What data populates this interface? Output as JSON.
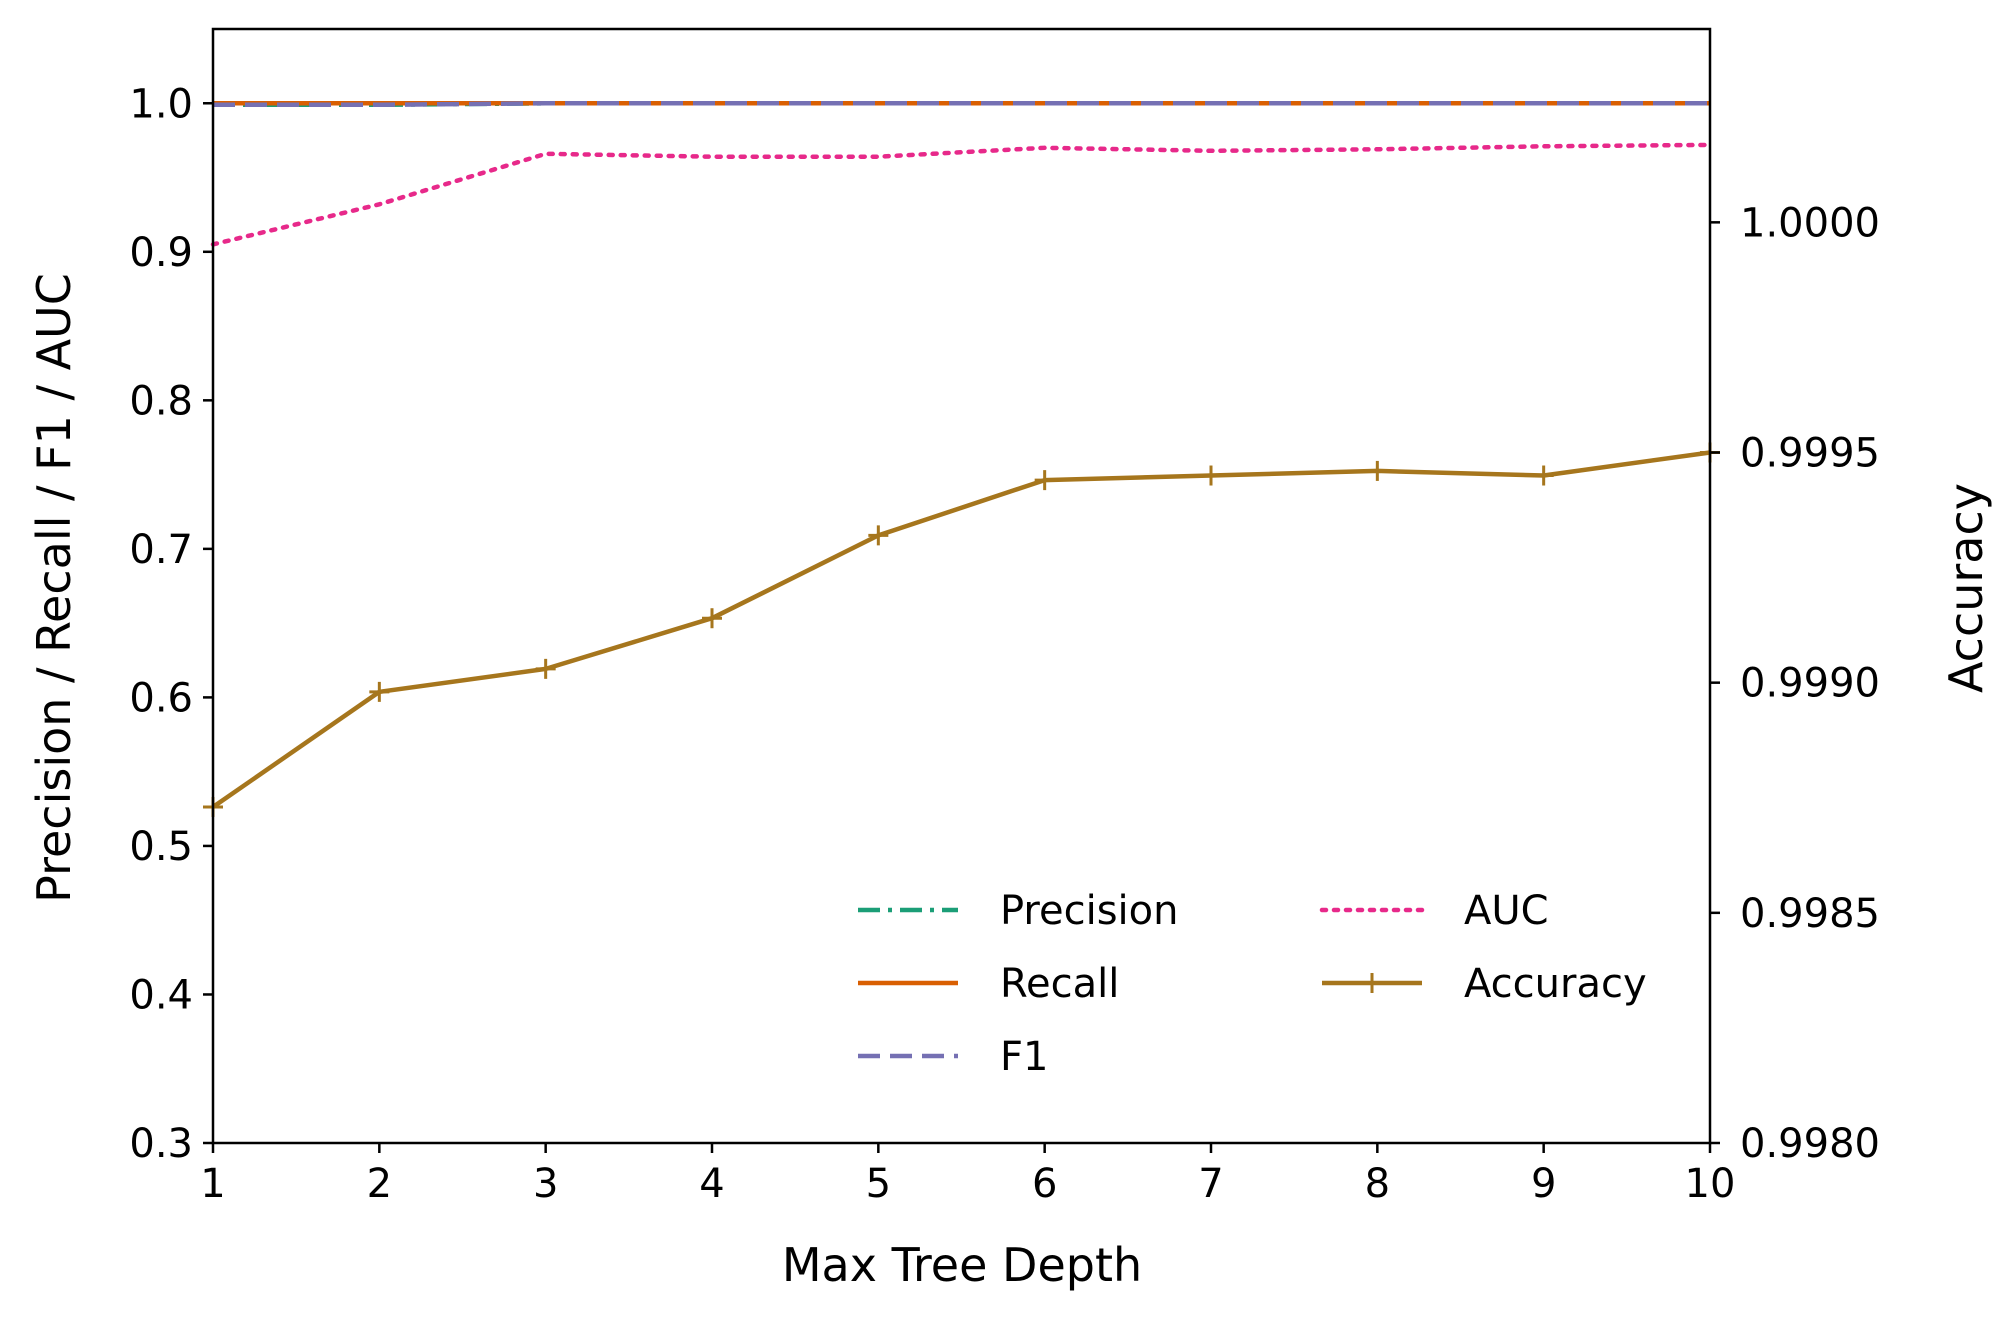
{
  "chart_data": {
    "type": "line",
    "xlabel": "Max Tree Depth",
    "ylabel_left": "Precision / Recall / F1 / AUC",
    "ylabel_right": "Accuracy",
    "x": [
      1,
      2,
      3,
      4,
      5,
      6,
      7,
      8,
      9,
      10
    ],
    "xlim": [
      1,
      10
    ],
    "ylim_left": [
      0.3,
      1.05
    ],
    "ylim_right": [
      0.998,
      1.00042
    ],
    "xticks": [
      "1",
      "2",
      "3",
      "4",
      "5",
      "6",
      "7",
      "8",
      "9",
      "10"
    ],
    "yticks_left": [
      {
        "value": 0.3,
        "label": "0.3"
      },
      {
        "value": 0.4,
        "label": "0.4"
      },
      {
        "value": 0.5,
        "label": "0.5"
      },
      {
        "value": 0.6,
        "label": "0.6"
      },
      {
        "value": 0.7,
        "label": "0.7"
      },
      {
        "value": 0.8,
        "label": "0.8"
      },
      {
        "value": 0.9,
        "label": "0.9"
      },
      {
        "value": 1.0,
        "label": "1.0"
      }
    ],
    "yticks_right": [
      {
        "value": 0.998,
        "label": "0.9980"
      },
      {
        "value": 0.9985,
        "label": "0.9985"
      },
      {
        "value": 0.999,
        "label": "0.9990"
      },
      {
        "value": 0.9995,
        "label": "0.9995"
      },
      {
        "value": 1.0,
        "label": "1.0000"
      }
    ],
    "series": [
      {
        "name": "Precision",
        "axis": "left",
        "color": "#1b9e77",
        "style": "dashdot",
        "marker": "none",
        "values": [
          0.999,
          0.999,
          1.0,
          1.0,
          1.0,
          1.0,
          1.0,
          1.0,
          1.0,
          1.0
        ]
      },
      {
        "name": "Recall",
        "axis": "left",
        "color": "#d95f02",
        "style": "solid",
        "marker": "none",
        "values": [
          1.0,
          1.0,
          1.0,
          1.0,
          1.0,
          1.0,
          1.0,
          1.0,
          1.0,
          1.0
        ]
      },
      {
        "name": "F1",
        "axis": "left",
        "color": "#7570b3",
        "style": "dashed",
        "marker": "none",
        "values": [
          0.999,
          0.999,
          1.0,
          1.0,
          1.0,
          1.0,
          1.0,
          1.0,
          1.0,
          1.0
        ]
      },
      {
        "name": "AUC",
        "axis": "left",
        "color": "#e7298a",
        "style": "dotted",
        "marker": "none",
        "values": [
          0.905,
          0.932,
          0.966,
          0.964,
          0.964,
          0.97,
          0.968,
          0.969,
          0.971,
          0.972
        ]
      },
      {
        "name": "Accuracy",
        "axis": "right",
        "color": "#a6761d",
        "style": "solid",
        "marker": "plus",
        "values": [
          0.99873,
          0.99898,
          0.99903,
          0.99914,
          0.99932,
          0.99944,
          0.99945,
          0.99946,
          0.99945,
          0.9995
        ]
      }
    ],
    "legend": {
      "location": "lower-right",
      "columns": 2
    },
    "grid": false
  }
}
